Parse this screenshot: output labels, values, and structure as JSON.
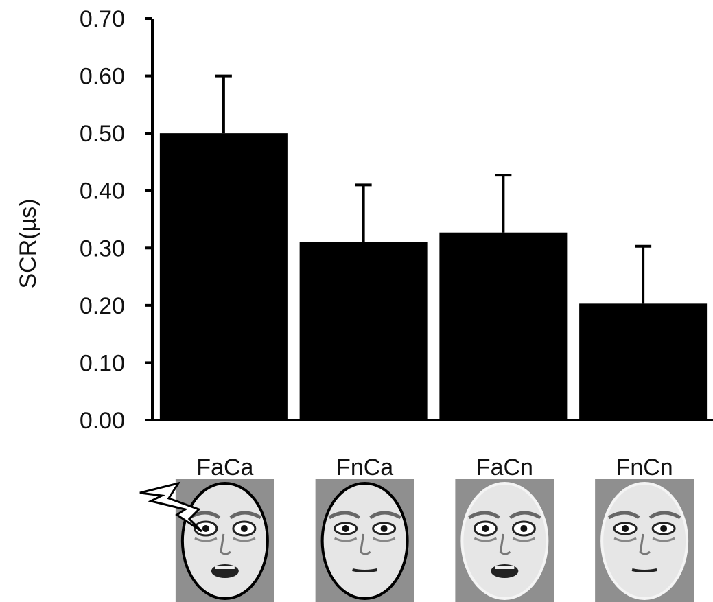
{
  "chart_data": {
    "type": "bar",
    "categories": [
      "FaCa",
      "FnCa",
      "FaCn",
      "FnCn"
    ],
    "values": [
      0.5,
      0.31,
      0.327,
      0.203
    ],
    "errors": [
      0.1,
      0.1,
      0.1,
      0.1
    ],
    "ylabel": "SCR(µs)",
    "ylim": [
      0,
      0.7
    ],
    "yticks": [
      "0.00",
      "0.10",
      "0.20",
      "0.30",
      "0.40",
      "0.50",
      "0.60",
      "0.70"
    ],
    "bar_color": "#000000",
    "grid": false
  },
  "stimuli": [
    {
      "label": "FaCa",
      "expression": "fearful",
      "shock": true
    },
    {
      "label": "FnCa",
      "expression": "neutral",
      "shock": false
    },
    {
      "label": "FaCn",
      "expression": "fearful",
      "shock": false
    },
    {
      "label": "FnCn",
      "expression": "neutral",
      "shock": false
    }
  ],
  "colors": {
    "face_bg": "#8f8f8f",
    "bar": "#000000",
    "axis": "#000000"
  }
}
